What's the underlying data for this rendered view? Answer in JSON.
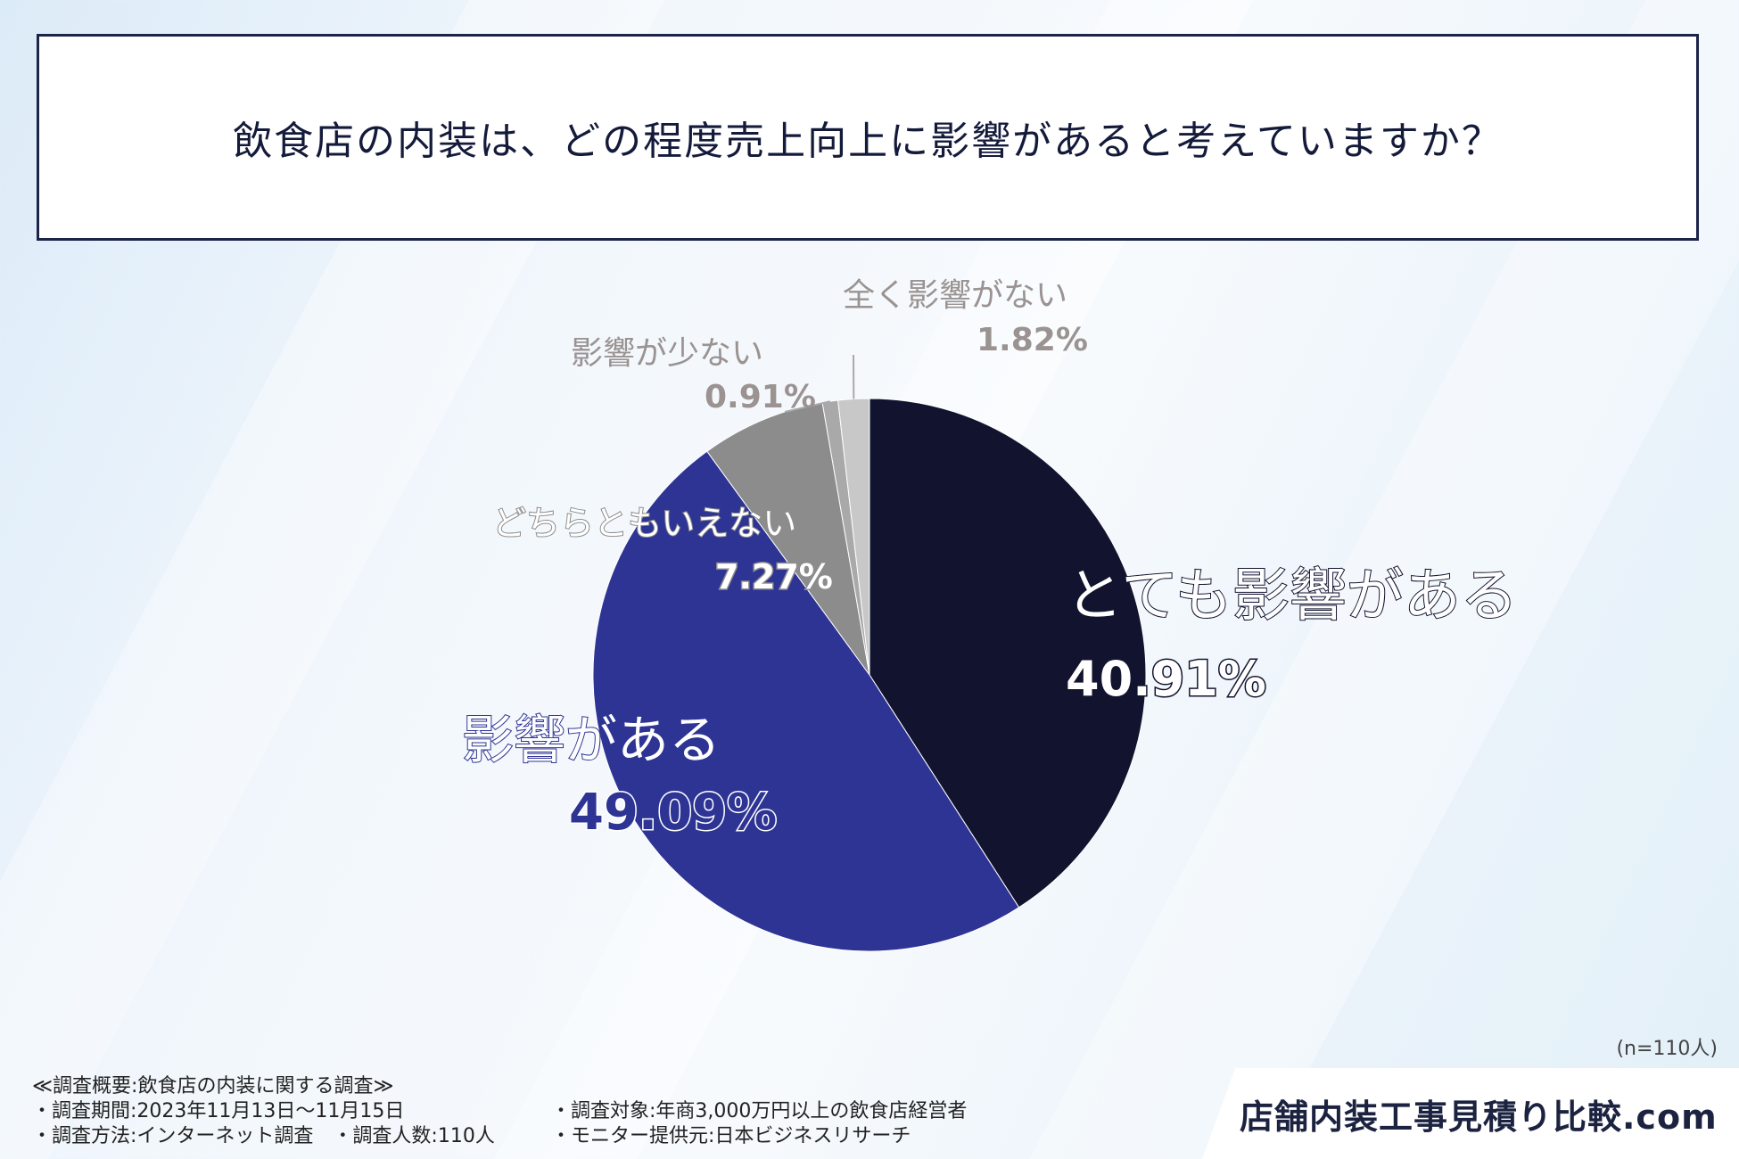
{
  "title": "飲食店の内装は、どの程度売上向上に影響があると考えていますか？",
  "chart_data": {
    "type": "pie",
    "sample_size_label": "(n=110人)",
    "slices": [
      {
        "label": "とても影響がある",
        "value": 40.91,
        "value_label": "40.91%",
        "color": "#12142f"
      },
      {
        "label": "影響がある",
        "value": 49.09,
        "value_label": "49.09%",
        "color": "#2e3494"
      },
      {
        "label": "どちらともいえない",
        "value": 7.27,
        "value_label": "7.27%",
        "color": "#8c8c8c"
      },
      {
        "label": "影響が少ない",
        "value": 0.91,
        "value_label": "0.91%",
        "color": "#a9a9a9"
      },
      {
        "label": "全く影響がない",
        "value": 1.82,
        "value_label": "1.82%",
        "color": "#c8c8c8"
      }
    ]
  },
  "footer": {
    "survey_title": "≪調査概要:飲食店の内装に関する調査≫",
    "period": "・調査期間:2023年11月13日〜11月15日",
    "method": "・調査方法:インターネット調査　・調査人数:110人",
    "target": "・調査対象:年商3,000万円以上の飲食店経営者",
    "monitor": "・モニター提供元:日本ビジネスリサーチ"
  },
  "brand": "店舗内装工事見積り比較.com"
}
